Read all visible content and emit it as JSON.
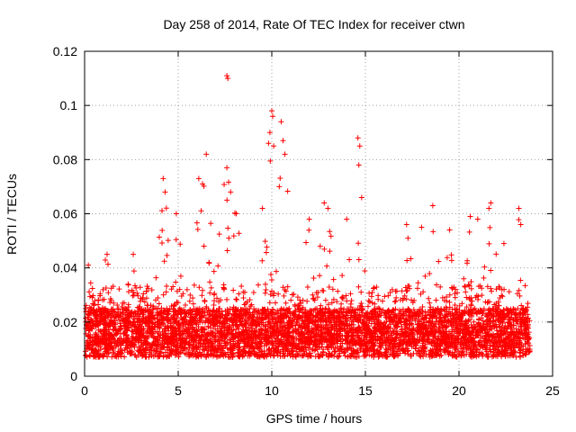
{
  "chart_data": {
    "type": "scatter",
    "title": "Day 258 of 2014, Rate Of TEC Index for receiver ctwn",
    "xlabel": "GPS time / hours",
    "ylabel": "ROTI / TECUs",
    "xlim": [
      0,
      25
    ],
    "ylim": [
      0,
      0.12
    ],
    "xticks": [
      0,
      5,
      10,
      15,
      20,
      25
    ],
    "yticks": [
      0,
      0.02,
      0.04,
      0.06,
      0.08,
      0.1,
      0.12
    ],
    "grid": true,
    "marker": "+",
    "marker_color": "#ff0000",
    "x_extent": [
      0.05,
      23.8
    ],
    "baseline_band": [
      0.007,
      0.025
    ],
    "notable_points": [
      {
        "x": 0.2,
        "y": 0.041
      },
      {
        "x": 1.2,
        "y": 0.045
      },
      {
        "x": 2.6,
        "y": 0.045
      },
      {
        "x": 4.2,
        "y": 0.073
      },
      {
        "x": 4.3,
        "y": 0.068
      },
      {
        "x": 4.9,
        "y": 0.06
      },
      {
        "x": 6.1,
        "y": 0.073
      },
      {
        "x": 6.3,
        "y": 0.071
      },
      {
        "x": 6.5,
        "y": 0.082
      },
      {
        "x": 7.6,
        "y": 0.111
      },
      {
        "x": 7.65,
        "y": 0.11
      },
      {
        "x": 7.6,
        "y": 0.077
      },
      {
        "x": 7.8,
        "y": 0.068
      },
      {
        "x": 8.1,
        "y": 0.06
      },
      {
        "x": 9.5,
        "y": 0.062
      },
      {
        "x": 9.9,
        "y": 0.09
      },
      {
        "x": 10.0,
        "y": 0.098
      },
      {
        "x": 10.05,
        "y": 0.096
      },
      {
        "x": 10.1,
        "y": 0.085
      },
      {
        "x": 10.5,
        "y": 0.094
      },
      {
        "x": 10.6,
        "y": 0.087
      },
      {
        "x": 10.7,
        "y": 0.082
      },
      {
        "x": 10.4,
        "y": 0.07
      },
      {
        "x": 12.0,
        "y": 0.058
      },
      {
        "x": 12.8,
        "y": 0.064
      },
      {
        "x": 13.0,
        "y": 0.062
      },
      {
        "x": 14.0,
        "y": 0.058
      },
      {
        "x": 14.6,
        "y": 0.088
      },
      {
        "x": 14.7,
        "y": 0.085
      },
      {
        "x": 14.65,
        "y": 0.078
      },
      {
        "x": 14.8,
        "y": 0.066
      },
      {
        "x": 17.2,
        "y": 0.056
      },
      {
        "x": 18.0,
        "y": 0.055
      },
      {
        "x": 18.6,
        "y": 0.063
      },
      {
        "x": 19.5,
        "y": 0.054
      },
      {
        "x": 20.6,
        "y": 0.059
      },
      {
        "x": 21.0,
        "y": 0.058
      },
      {
        "x": 21.6,
        "y": 0.062
      },
      {
        "x": 21.7,
        "y": 0.064
      },
      {
        "x": 22.4,
        "y": 0.049
      },
      {
        "x": 23.2,
        "y": 0.062
      },
      {
        "x": 23.3,
        "y": 0.056
      }
    ]
  }
}
